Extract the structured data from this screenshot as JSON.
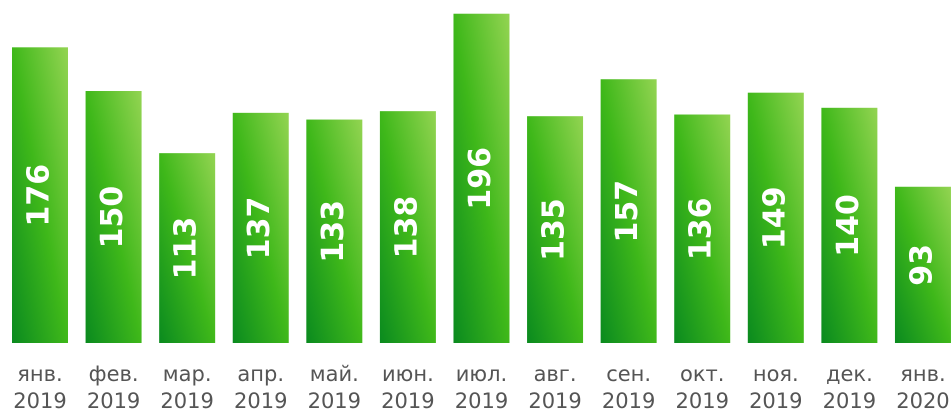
{
  "chart_data": {
    "type": "bar",
    "categories": [
      [
        "янв.",
        "2019"
      ],
      [
        "фев.",
        "2019"
      ],
      [
        "мар.",
        "2019"
      ],
      [
        "апр.",
        "2019"
      ],
      [
        "май.",
        "2019"
      ],
      [
        "июн.",
        "2019"
      ],
      [
        "июл.",
        "2019"
      ],
      [
        "авг.",
        "2019"
      ],
      [
        "сен.",
        "2019"
      ],
      [
        "окт.",
        "2019"
      ],
      [
        "ноя.",
        "2019"
      ],
      [
        "дек.",
        "2019"
      ],
      [
        "янв.",
        "2020"
      ]
    ],
    "values": [
      176,
      150,
      113,
      137,
      133,
      138,
      196,
      135,
      157,
      136,
      149,
      140,
      93
    ],
    "color": "#3fb21a"
  }
}
